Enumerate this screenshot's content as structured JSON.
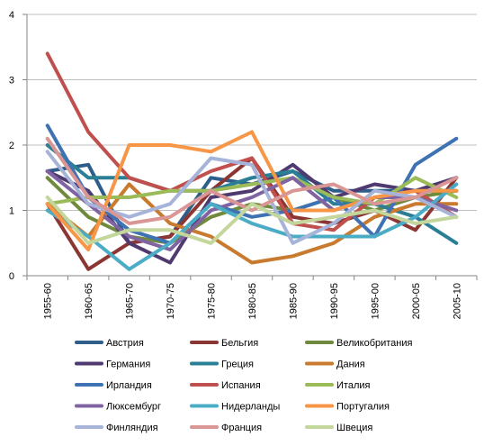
{
  "chart_data": {
    "type": "line",
    "title": "",
    "xlabel": "",
    "ylabel": "",
    "ylim": [
      0,
      4
    ],
    "yticks": [
      0,
      1,
      2,
      3,
      4
    ],
    "grid": "horizontal",
    "legend_position": "bottom",
    "categories": [
      "1955-60",
      "1960-65",
      "1965-70",
      "1970-75",
      "1975-80",
      "1980-85",
      "1985-90",
      "1990-95",
      "1995-00",
      "2000-05",
      "2005-10"
    ],
    "series": [
      {
        "name": "Австрия",
        "color": "#2e5d8a",
        "values": [
          1.6,
          1.7,
          0.5,
          0.6,
          1.5,
          1.4,
          1.6,
          1.3,
          1.3,
          1.3,
          1.3
        ]
      },
      {
        "name": "Бельгия",
        "color": "#8b3633",
        "values": [
          1.1,
          0.1,
          0.5,
          0.6,
          1.3,
          1.8,
          0.9,
          0.8,
          1.0,
          0.7,
          1.5
        ]
      },
      {
        "name": "Великобритания",
        "color": "#6f8a3c",
        "values": [
          1.5,
          0.9,
          0.6,
          0.5,
          0.9,
          1.1,
          1.0,
          1.2,
          1.0,
          1.2,
          1.3
        ]
      },
      {
        "name": "Германия",
        "color": "#4f3a6f",
        "values": [
          1.6,
          1.3,
          0.5,
          0.2,
          1.2,
          1.3,
          1.7,
          1.2,
          1.4,
          1.3,
          1.5
        ]
      },
      {
        "name": "Греция",
        "color": "#2b7f95",
        "values": [
          2.0,
          1.5,
          1.5,
          1.3,
          1.3,
          1.5,
          1.6,
          1.1,
          1.1,
          0.9,
          0.5
        ]
      },
      {
        "name": "Дания",
        "color": "#c87a2e",
        "values": [
          1.1,
          0.6,
          1.4,
          0.8,
          0.6,
          0.2,
          0.3,
          0.5,
          0.9,
          1.1,
          1.1
        ]
      },
      {
        "name": "Ирландия",
        "color": "#3f72b3",
        "values": [
          2.3,
          1.2,
          0.7,
          0.5,
          1.1,
          0.9,
          1.0,
          1.2,
          0.6,
          1.7,
          2.1
        ]
      },
      {
        "name": "Испания",
        "color": "#c0504d",
        "values": [
          3.4,
          2.2,
          1.5,
          1.3,
          1.6,
          1.8,
          0.8,
          0.7,
          1.2,
          1.3,
          0.9
        ]
      },
      {
        "name": "Италия",
        "color": "#9bbb59",
        "values": [
          1.1,
          1.2,
          1.2,
          1.3,
          1.3,
          1.4,
          1.5,
          1.2,
          1.1,
          1.5,
          1.2
        ]
      },
      {
        "name": "Люксембург",
        "color": "#8064a2",
        "values": [
          1.6,
          1.1,
          0.6,
          0.4,
          1.0,
          1.2,
          1.5,
          1.0,
          1.2,
          1.2,
          1.0
        ]
      },
      {
        "name": "Нидерланды",
        "color": "#4bacc6",
        "values": [
          1.0,
          0.6,
          0.1,
          0.5,
          1.1,
          0.8,
          0.6,
          0.6,
          0.6,
          0.9,
          1.4
        ]
      },
      {
        "name": "Португалия",
        "color": "#f79646",
        "values": [
          1.1,
          0.4,
          2.0,
          2.0,
          1.9,
          2.2,
          1.0,
          1.0,
          1.2,
          1.3,
          1.3
        ]
      },
      {
        "name": "Финляндия",
        "color": "#a5b4d8",
        "values": [
          1.9,
          1.1,
          0.9,
          1.1,
          1.8,
          1.7,
          0.5,
          0.8,
          1.3,
          1.2,
          0.9
        ]
      },
      {
        "name": "Франция",
        "color": "#d99694",
        "values": [
          2.1,
          1.2,
          0.8,
          0.9,
          1.3,
          1.0,
          1.3,
          1.4,
          1.1,
          1.2,
          1.5
        ]
      },
      {
        "name": "Швеция",
        "color": "#c3d69b",
        "values": [
          1.2,
          0.5,
          0.7,
          0.7,
          0.5,
          1.1,
          0.8,
          0.9,
          1.0,
          0.8,
          0.9
        ]
      }
    ]
  }
}
